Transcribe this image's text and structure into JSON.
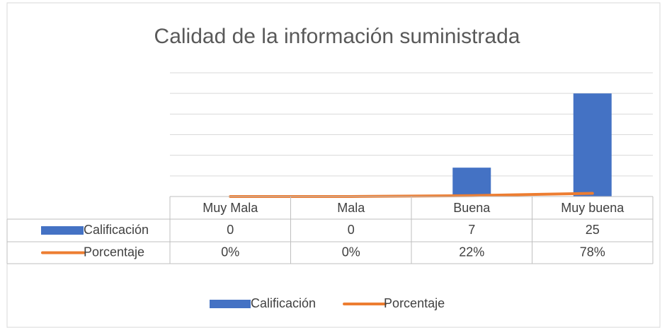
{
  "chart_data": {
    "type": "bar",
    "title": "Calidad de la información suministrada",
    "categories": [
      "Muy Mala",
      "Mala",
      "Buena",
      "Muy buena"
    ],
    "series": [
      {
        "name": "Calificación",
        "type": "bar",
        "color": "#4472c4",
        "values": [
          0,
          0,
          7,
          25
        ]
      },
      {
        "name": "Porcentaje",
        "type": "line",
        "color": "#ed7d31",
        "values": [
          0,
          0,
          0.22,
          0.78
        ],
        "value_labels": [
          "0%",
          "0%",
          "22%",
          "78%"
        ]
      }
    ],
    "ylim": [
      0,
      30
    ],
    "yticks": [
      0,
      5,
      10,
      15,
      20,
      25,
      30
    ],
    "grid": true,
    "legend": "bottom",
    "data_table": true
  }
}
